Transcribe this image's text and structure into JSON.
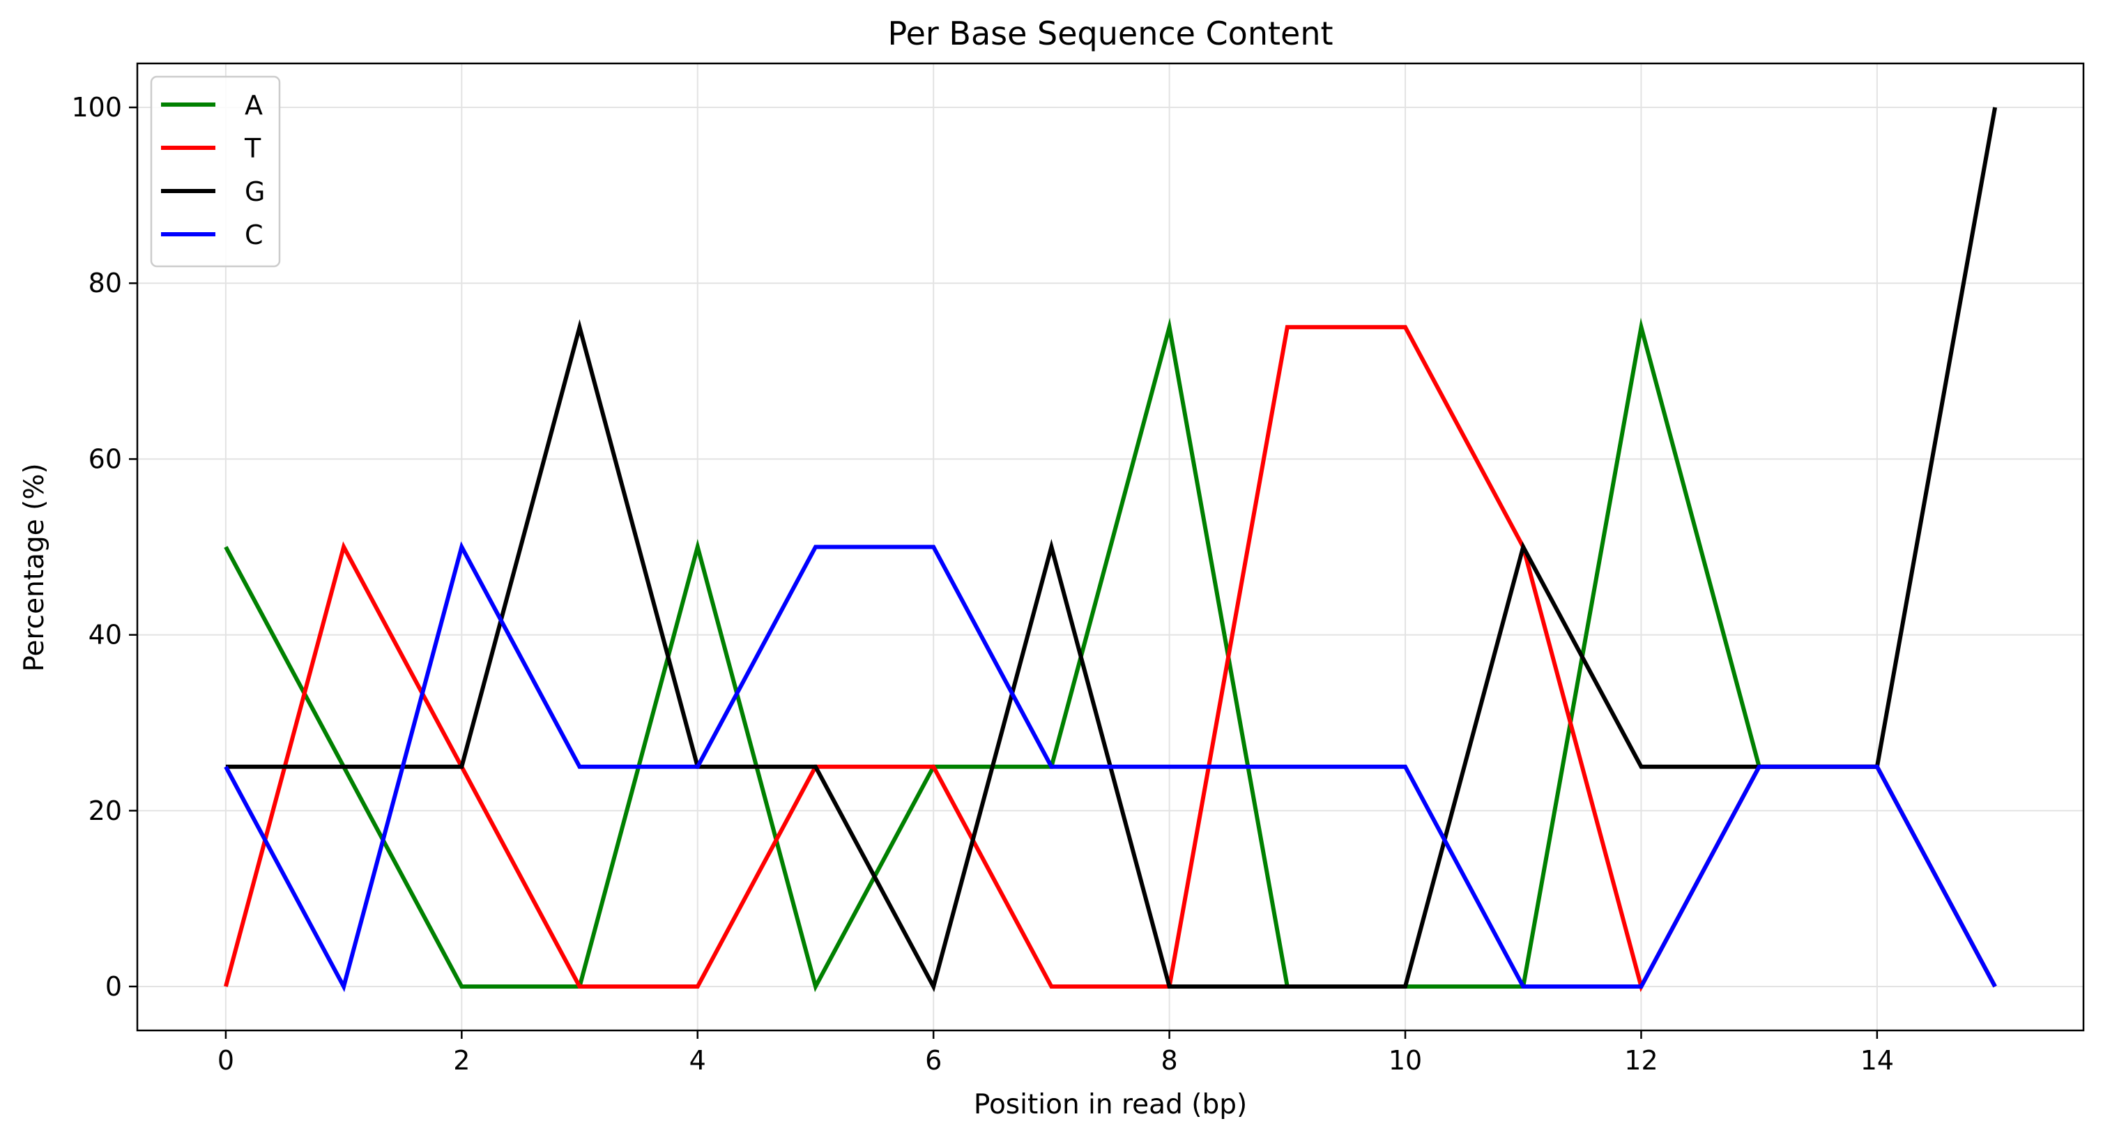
{
  "chart_data": {
    "type": "line",
    "title": "Per Base Sequence Content",
    "xlabel": "Position in read (bp)",
    "ylabel": "Percentage (%)",
    "x": [
      0,
      1,
      2,
      3,
      4,
      5,
      6,
      7,
      8,
      9,
      10,
      11,
      12,
      13,
      14,
      15
    ],
    "xlim": [
      -0.75,
      15.75
    ],
    "ylim": [
      -5,
      105
    ],
    "xticks": [
      0,
      2,
      4,
      6,
      8,
      10,
      12,
      14
    ],
    "yticks": [
      0,
      20,
      40,
      60,
      80,
      100
    ],
    "grid": true,
    "legend_position": "upper-left",
    "series": [
      {
        "name": "A",
        "color": "#008000",
        "values": [
          50,
          25,
          0,
          0,
          50,
          0,
          25,
          25,
          75,
          0,
          0,
          0,
          75,
          25,
          25,
          0
        ]
      },
      {
        "name": "T",
        "color": "#ff0000",
        "values": [
          0,
          50,
          25,
          0,
          0,
          25,
          25,
          0,
          0,
          75,
          75,
          50,
          0,
          25,
          25,
          0
        ]
      },
      {
        "name": "G",
        "color": "#000000",
        "values": [
          25,
          25,
          25,
          75,
          25,
          25,
          0,
          50,
          0,
          0,
          0,
          50,
          25,
          25,
          25,
          100
        ]
      },
      {
        "name": "C",
        "color": "#0000ff",
        "values": [
          25,
          0,
          50,
          25,
          25,
          50,
          50,
          25,
          25,
          25,
          25,
          0,
          0,
          25,
          25,
          0
        ]
      }
    ]
  }
}
